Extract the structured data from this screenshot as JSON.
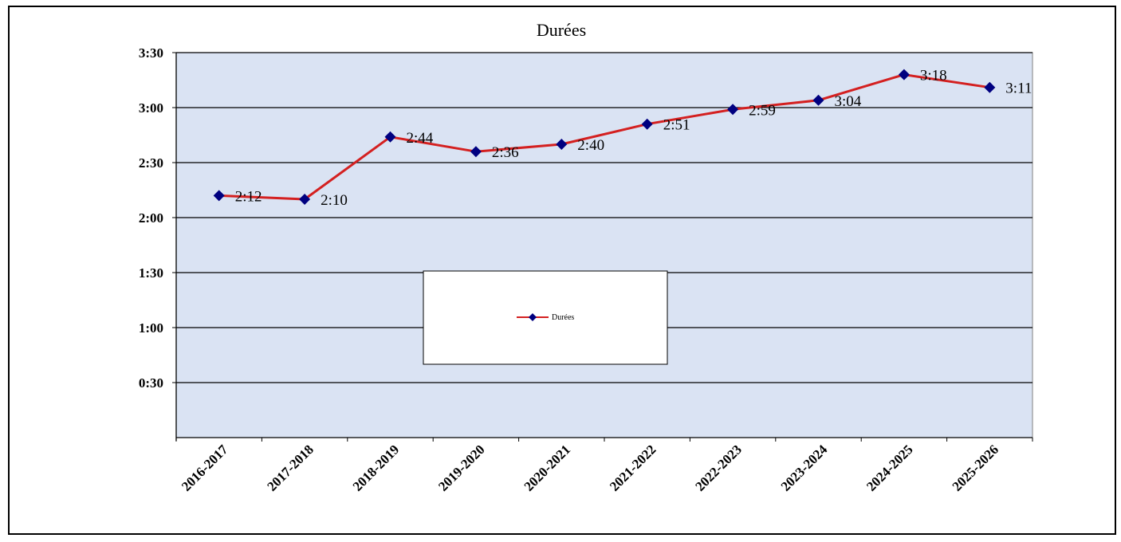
{
  "chart_data": {
    "type": "line",
    "title": "Durées",
    "xlabel": "",
    "ylabel": "",
    "categories": [
      "2016-2017",
      "2017-2018",
      "2018-2019",
      "2019-2020",
      "2020-2021",
      "2021-2022",
      "2022-2023",
      "2023-2024",
      "2024-2025",
      "2025-2026"
    ],
    "series": [
      {
        "name": "Durées",
        "values_minutes": [
          132,
          130,
          164,
          156,
          160,
          171,
          179,
          184,
          198,
          191
        ],
        "labels": [
          "2:12",
          "2:10",
          "2:44",
          "2:36",
          "2:40",
          "2:51",
          "2:59",
          "3:04",
          "3:18",
          "3:11"
        ],
        "line_color": "#d42020",
        "marker_color": "#000080",
        "marker": "diamond"
      }
    ],
    "y_ticks": [
      "0:30",
      "1:00",
      "1:30",
      "2:00",
      "2:30",
      "3:00",
      "3:30"
    ],
    "ylim_minutes": [
      0,
      210
    ],
    "grid": true,
    "plot_background": "#dae3f3",
    "legend_position": "center"
  }
}
